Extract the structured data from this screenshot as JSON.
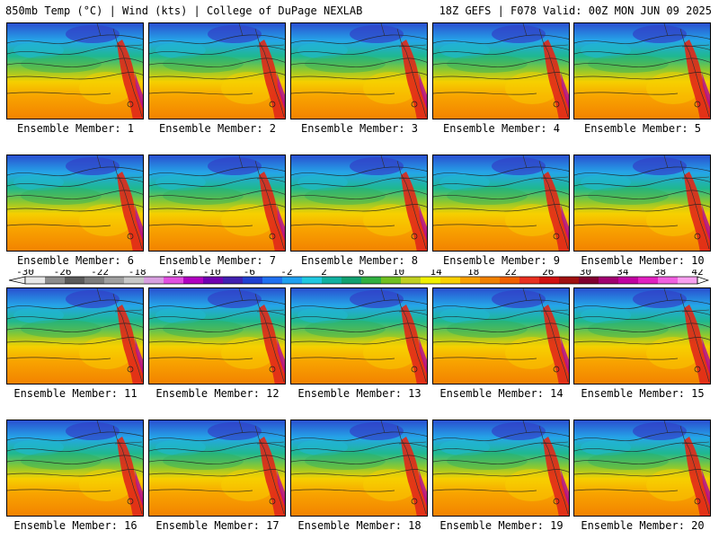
{
  "header": {
    "left": "850mb Temp (°C) | Wind (kts) | College of DuPage NEXLAB",
    "right": "18Z GEFS | F078 Valid: 00Z MON JUN 09 2025"
  },
  "colorbar": {
    "ticks": [
      "-30",
      "-26",
      "-22",
      "-18",
      "-14",
      "-10",
      "-6",
      "-2",
      "2",
      "6",
      "10",
      "14",
      "18",
      "22",
      "26",
      "30",
      "34",
      "38",
      "42"
    ],
    "colors": [
      "#e8e8e8",
      "#8c8c8c",
      "#5a5a5a",
      "#7c7c7c",
      "#a0a0a0",
      "#c8c8c8",
      "#d8a0e0",
      "#e050e0",
      "#b000c0",
      "#7000b0",
      "#4020b0",
      "#2040d0",
      "#2070f0",
      "#20a0f0",
      "#20c8e0",
      "#10b0a0",
      "#10a070",
      "#30b040",
      "#70c020",
      "#c0d020",
      "#f0f000",
      "#f8d000",
      "#f8a000",
      "#f08000",
      "#f06000",
      "#e83020",
      "#d01010",
      "#a01010",
      "#800030",
      "#a00070",
      "#c000a0",
      "#e020c0",
      "#f060e0",
      "#f8a0f0"
    ]
  },
  "members": [
    {
      "label": "Ensemble Member: 1"
    },
    {
      "label": "Ensemble Member: 2"
    },
    {
      "label": "Ensemble Member: 3"
    },
    {
      "label": "Ensemble Member: 4"
    },
    {
      "label": "Ensemble Member: 5"
    },
    {
      "label": "Ensemble Member: 6"
    },
    {
      "label": "Ensemble Member: 7"
    },
    {
      "label": "Ensemble Member: 8"
    },
    {
      "label": "Ensemble Member: 9"
    },
    {
      "label": "Ensemble Member: 10"
    },
    {
      "label": "Ensemble Member: 11"
    },
    {
      "label": "Ensemble Member: 12"
    },
    {
      "label": "Ensemble Member: 13"
    },
    {
      "label": "Ensemble Member: 14"
    },
    {
      "label": "Ensemble Member: 15"
    },
    {
      "label": "Ensemble Member: 16"
    },
    {
      "label": "Ensemble Member: 17"
    },
    {
      "label": "Ensemble Member: 18"
    },
    {
      "label": "Ensemble Member: 19"
    },
    {
      "label": "Ensemble Member: 20"
    }
  ]
}
